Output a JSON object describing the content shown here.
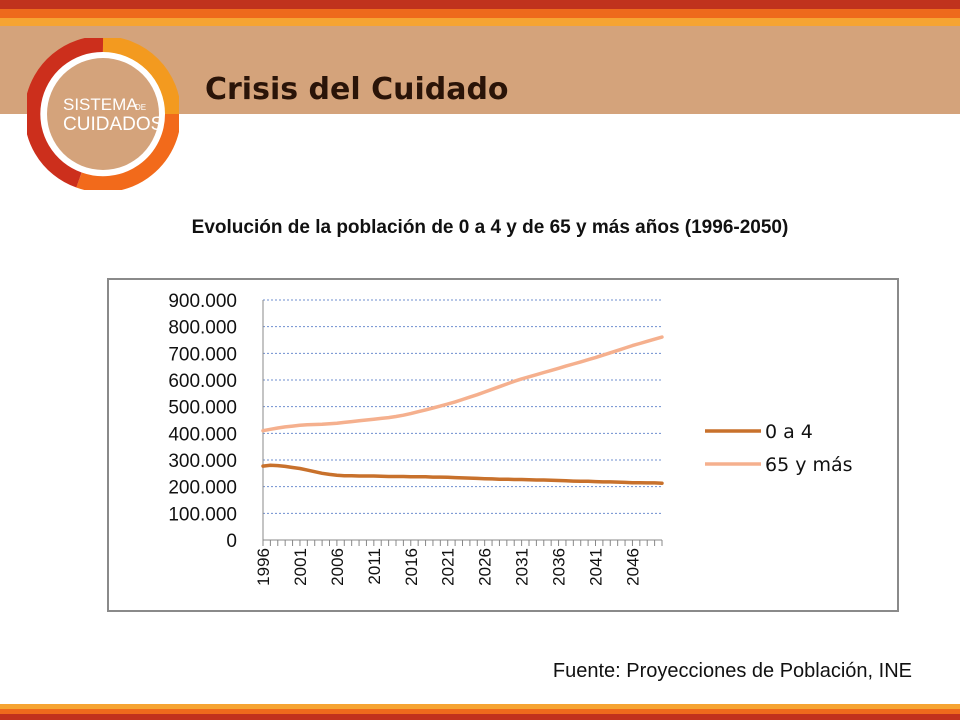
{
  "header": {
    "title": "Crisis del Cuidado",
    "logo": {
      "line1": "SISTEMA",
      "small": "DE",
      "line2": "CUIDADOS"
    },
    "colors": {
      "band": "#d4a37b",
      "accent_red": "#cc2f1c",
      "accent_orange": "#f26a1b",
      "accent_amber": "#f39a1f"
    }
  },
  "footer": {
    "source": "Fuente: Proyecciones de Población, INE"
  },
  "chart_data": {
    "type": "line",
    "title": "Evolución de la población de 0 a 4 y de 65 y más años (1996-2050)",
    "xlabel": "",
    "ylabel": "",
    "x": [
      1996,
      1997,
      1998,
      1999,
      2000,
      2001,
      2002,
      2003,
      2004,
      2005,
      2006,
      2007,
      2008,
      2009,
      2010,
      2011,
      2012,
      2013,
      2014,
      2015,
      2016,
      2017,
      2018,
      2019,
      2020,
      2021,
      2022,
      2023,
      2024,
      2025,
      2026,
      2027,
      2028,
      2029,
      2030,
      2031,
      2032,
      2033,
      2034,
      2035,
      2036,
      2037,
      2038,
      2039,
      2040,
      2041,
      2042,
      2043,
      2044,
      2045,
      2046,
      2047,
      2048,
      2049,
      2050
    ],
    "x_tick_labels": [
      "1996",
      "2001",
      "2006",
      "2011",
      "2016",
      "2021",
      "2026",
      "2031",
      "2036",
      "2041",
      "2046"
    ],
    "y_tick_labels": [
      "0",
      "100.000",
      "200.000",
      "300.000",
      "400.000",
      "500.000",
      "600.000",
      "700.000",
      "800.000",
      "900.000"
    ],
    "ylim": [
      0,
      900000
    ],
    "grid": true,
    "legend_position": "right",
    "series": [
      {
        "name": "0 a 4",
        "color": "#c8712c",
        "values": [
          277000,
          280000,
          279000,
          276000,
          272000,
          268000,
          262000,
          256000,
          250000,
          246000,
          243000,
          241000,
          241000,
          240000,
          240000,
          240000,
          239000,
          238000,
          238000,
          238000,
          237000,
          237000,
          237000,
          236000,
          236000,
          235000,
          234000,
          233000,
          232000,
          231000,
          230000,
          229000,
          228000,
          228000,
          227000,
          227000,
          226000,
          225000,
          225000,
          224000,
          223000,
          222000,
          221000,
          220000,
          220000,
          219000,
          218000,
          218000,
          217000,
          216000,
          215000,
          215000,
          214000,
          214000,
          213000
        ]
      },
      {
        "name": "65 y más",
        "color": "#f5b08e",
        "values": [
          410000,
          415000,
          420000,
          424000,
          427000,
          430000,
          432000,
          433000,
          434000,
          436000,
          438000,
          441000,
          444000,
          447000,
          450000,
          453000,
          456000,
          459000,
          463000,
          468000,
          474000,
          481000,
          488000,
          495000,
          502000,
          510000,
          518000,
          527000,
          536000,
          545000,
          555000,
          565000,
          575000,
          585000,
          595000,
          604000,
          612000,
          620000,
          628000,
          636000,
          644000,
          652000,
          660000,
          668000,
          676000,
          684000,
          693000,
          702000,
          711000,
          720000,
          729000,
          737000,
          745000,
          753000,
          761000
        ]
      }
    ]
  }
}
